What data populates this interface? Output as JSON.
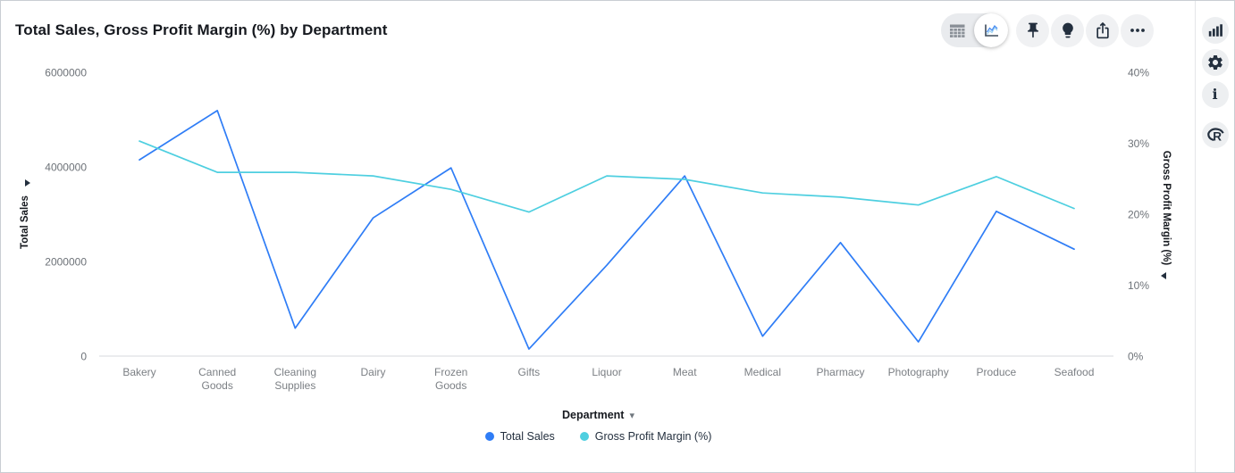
{
  "header": {
    "title": "Total Sales, Gross Profit Margin (%) by Department"
  },
  "toolbar": {
    "view_toggle": {
      "options": [
        {
          "name": "table-view",
          "selected": false
        },
        {
          "name": "chart-view",
          "selected": true
        }
      ]
    },
    "buttons": [
      {
        "name": "pin",
        "icon": "pushpin-icon"
      },
      {
        "name": "insights",
        "icon": "lightbulb-icon"
      },
      {
        "name": "export",
        "icon": "export-icon"
      },
      {
        "name": "more-options",
        "icon": "ellipsis-icon"
      }
    ]
  },
  "side_rail": {
    "buttons": [
      {
        "name": "visualize",
        "icon": "bar-chart-icon"
      },
      {
        "name": "settings",
        "icon": "gear-icon"
      },
      {
        "name": "info",
        "icon": "info-icon",
        "glyph": "i"
      },
      {
        "name": "r-insights",
        "icon": "r-logo-icon",
        "glyph": "R"
      }
    ]
  },
  "x_axis_control": {
    "label": "Department",
    "caret": "▾"
  },
  "chart_data": {
    "type": "line",
    "title": "Total Sales, Gross Profit Margin (%) by Department",
    "categories": [
      "Bakery",
      "Canned Goods",
      "Cleaning Supplies",
      "Dairy",
      "Frozen Goods",
      "Gifts",
      "Liquor",
      "Meat",
      "Medical",
      "Pharmacy",
      "Photography",
      "Produce",
      "Seafood"
    ],
    "x_axis_label": "Department",
    "legend_position": "bottom",
    "grid": false,
    "left_axis": {
      "label": "Total Sales",
      "range": [
        0,
        6000000
      ],
      "ticks": [
        {
          "value": 0,
          "label": "0"
        },
        {
          "value": 2000000,
          "label": "2000000"
        },
        {
          "value": 4000000,
          "label": "4000000"
        },
        {
          "value": 6000000,
          "label": "6000000"
        }
      ]
    },
    "right_axis": {
      "label": "Gross Profit Margin (%)",
      "range": [
        0,
        40
      ],
      "ticks": [
        {
          "value": 0,
          "label": "0%"
        },
        {
          "value": 10,
          "label": "10%"
        },
        {
          "value": 20,
          "label": "20%"
        },
        {
          "value": 30,
          "label": "30%"
        },
        {
          "value": 40,
          "label": "40%"
        }
      ]
    },
    "series": [
      {
        "name": "Total Sales",
        "axis": "left",
        "color": "#2f7df6",
        "values": [
          4150000,
          5190000,
          590000,
          2920000,
          3980000,
          150000,
          1920000,
          3810000,
          420000,
          2400000,
          300000,
          3060000,
          2260000
        ]
      },
      {
        "name": "Gross Profit Margin (%)",
        "axis": "right",
        "color": "#4ecfe0",
        "values": [
          30.3,
          25.9,
          25.9,
          25.4,
          23.5,
          20.3,
          25.4,
          24.9,
          23.0,
          22.4,
          21.3,
          25.3,
          20.8
        ]
      }
    ]
  }
}
